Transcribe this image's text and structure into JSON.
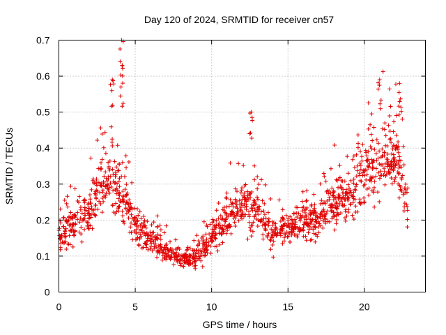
{
  "chart_data": {
    "type": "scatter",
    "title": "Day 120 of 2024, SRMTID for receiver cn57",
    "xlabel": "GPS time / hours",
    "ylabel": "SRMTID / TECUs",
    "xlim": [
      0,
      24
    ],
    "ylim": [
      0,
      0.7
    ],
    "x_ticks": [
      0,
      5,
      10,
      15,
      20
    ],
    "x_tick_labels": [
      "0",
      "5",
      "10",
      "15",
      "20"
    ],
    "y_ticks": [
      0,
      0.1,
      0.2,
      0.3,
      0.4,
      0.5,
      0.6,
      0.7
    ],
    "y_tick_labels": [
      "0",
      "0.1",
      "0.2",
      "0.3",
      "0.4",
      "0.5",
      "0.6",
      "0.7"
    ],
    "grid": true,
    "marker": "plus",
    "marker_color": "#e00000",
    "series": [
      {
        "name": "SRMTID",
        "x_range": [
          0,
          22.9
        ],
        "approx_profile": [
          [
            0,
            0.16
          ],
          [
            1,
            0.19
          ],
          [
            2,
            0.22
          ],
          [
            3,
            0.32
          ],
          [
            4,
            0.28
          ],
          [
            5,
            0.18
          ],
          [
            6,
            0.15
          ],
          [
            7,
            0.11
          ],
          [
            8,
            0.09
          ],
          [
            9,
            0.1
          ],
          [
            10,
            0.15
          ],
          [
            11,
            0.2
          ],
          [
            12,
            0.25
          ],
          [
            13,
            0.22
          ],
          [
            14,
            0.16
          ],
          [
            15,
            0.18
          ],
          [
            16,
            0.2
          ],
          [
            17,
            0.2
          ],
          [
            18,
            0.26
          ],
          [
            19,
            0.25
          ],
          [
            20,
            0.33
          ],
          [
            21,
            0.34
          ],
          [
            22,
            0.38
          ],
          [
            22.9,
            0.25
          ]
        ],
        "spikes": [
          [
            3.5,
            0.59
          ],
          [
            4.1,
            0.7
          ],
          [
            4.15,
            0.63
          ],
          [
            12.6,
            0.5
          ],
          [
            21.0,
            0.59
          ],
          [
            22.3,
            0.58
          ]
        ]
      }
    ]
  }
}
